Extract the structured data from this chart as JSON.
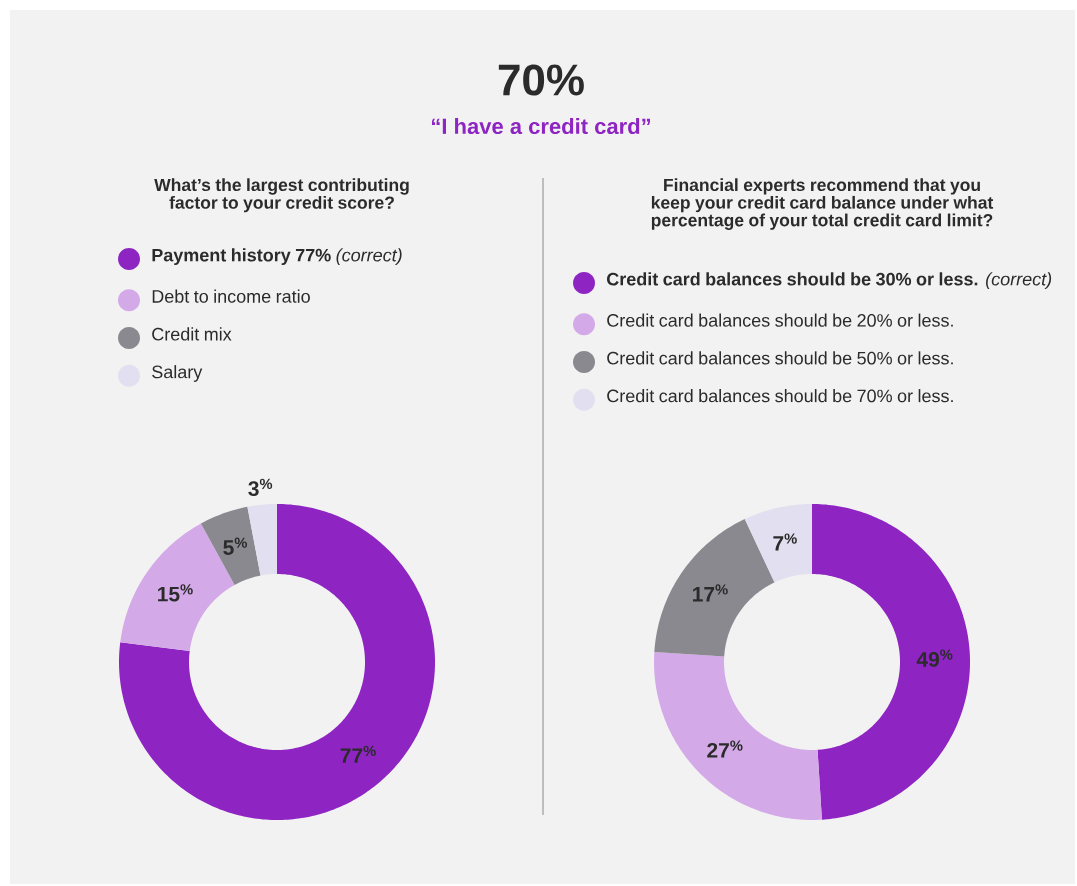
{
  "chart_data": [
    {
      "type": "other",
      "title": "70%",
      "subtitle": "“I have a credit card”"
    },
    {
      "type": "donut",
      "title": "What’s the largest contributing factor to your credit score?",
      "legend": "top",
      "categories": [
        "**Payment history 77%** *(correct)*",
        "Debt to income ratio",
        "Credit mix",
        "Salary"
      ],
      "values": [
        77,
        15,
        5,
        3
      ],
      "colors": [
        "#8e24c2",
        "#d4a9e8",
        "#8a898f",
        "#e2dff0"
      ],
      "value_labels": [
        "77$^{%}$",
        "15$^{%}$",
        "5$^{%}$",
        "3$^{%}$"
      ]
    },
    {
      "type": "donut",
      "title": "Financial experts recommend that you keep your credit card balance under what percentage of your total credit card limit?",
      "legend": "top",
      "categories": [
        "**Credit card balances should be 30% or less.** *(correct)*",
        "Credit card balances should be 20% or less.",
        "Credit card balances should be 50% or less.",
        "Credit card balances should be 70% or less."
      ],
      "values": [
        49,
        27,
        17,
        7
      ],
      "colors": [
        "#8e24c2",
        "#d4a9e8",
        "#8a898f",
        "#e2dff0"
      ],
      "value_labels": [
        "49$^{%}$",
        "27$^{%}$",
        "17$^{%}$",
        "7$^{%}$"
      ]
    }
  ]
}
